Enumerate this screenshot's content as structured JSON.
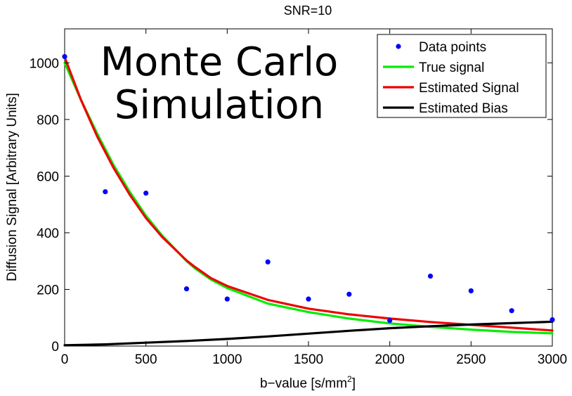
{
  "chart_data": {
    "type": "line",
    "title": "SNR=10",
    "overlay_lines": [
      "Monte Carlo",
      "Simulation"
    ],
    "xlabel": "b−value [s/mm",
    "xlabel_superscript": "2",
    "xlabel_suffix": "]",
    "ylabel": "Diffusion Signal [Arbitrary Units]",
    "xlim": [
      0,
      3000
    ],
    "ylim": [
      0,
      1120
    ],
    "x_ticks": [
      0,
      500,
      1000,
      1500,
      2000,
      2500,
      3000
    ],
    "y_ticks": [
      0,
      200,
      400,
      600,
      800,
      1000
    ],
    "grid": false,
    "legend_position": "top-right",
    "series": [
      {
        "name": "Data points",
        "kind": "scatter",
        "color": "#0000ff",
        "x": [
          0,
          250,
          500,
          750,
          1000,
          1250,
          1500,
          1750,
          2000,
          2250,
          2500,
          2750,
          3000
        ],
        "y": [
          1022,
          545,
          540,
          202,
          166,
          297,
          166,
          183,
          90,
          247,
          195,
          125,
          93
        ]
      },
      {
        "name": "True signal",
        "kind": "line",
        "color": "#00ee00",
        "x": [
          0,
          100,
          200,
          300,
          400,
          500,
          600,
          700,
          750,
          800,
          900,
          1000,
          1250,
          1500,
          1750,
          2000,
          2250,
          2500,
          2750,
          3000
        ],
        "y": [
          1000,
          870,
          750,
          640,
          545,
          460,
          390,
          330,
          300,
          275,
          235,
          205,
          150,
          120,
          97,
          80,
          68,
          58,
          50,
          45
        ]
      },
      {
        "name": "Estimated Signal",
        "kind": "line",
        "color": "#ee0000",
        "x": [
          0,
          100,
          200,
          300,
          400,
          500,
          600,
          700,
          750,
          800,
          900,
          1000,
          1250,
          1500,
          1750,
          2000,
          2250,
          2500,
          2750,
          3000
        ],
        "y": [
          1020,
          870,
          740,
          630,
          535,
          452,
          385,
          330,
          302,
          280,
          240,
          212,
          163,
          132,
          112,
          97,
          85,
          75,
          65,
          55
        ]
      },
      {
        "name": "Estimated Bias",
        "kind": "line",
        "color": "#000000",
        "x": [
          0,
          250,
          500,
          750,
          1000,
          1250,
          1500,
          1750,
          2000,
          2250,
          2500,
          2750,
          3000
        ],
        "y": [
          3,
          6,
          12,
          18,
          25,
          34,
          44,
          54,
          63,
          70,
          76,
          81,
          86
        ]
      }
    ]
  }
}
